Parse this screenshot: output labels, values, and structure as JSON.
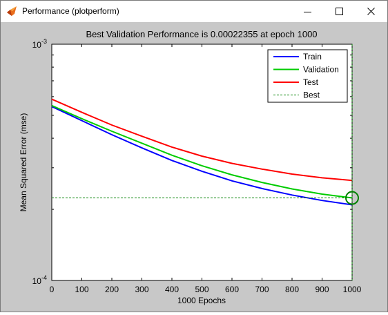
{
  "window": {
    "title": "Performance (plotperform)",
    "icon": "matlab-icon",
    "controls": [
      "minimize-icon",
      "maximize-icon",
      "close-icon"
    ]
  },
  "chart_data": {
    "type": "line",
    "title": "Best Validation Performance is 0.00022355 at epoch 1000",
    "xlabel": "1000 Epochs",
    "ylabel": "Mean Squared Error  (mse)",
    "xlim": [
      0,
      1000
    ],
    "ylim": [
      0.0001,
      0.001
    ],
    "yscale": "log",
    "x_ticks": [
      "0",
      "100",
      "200",
      "300",
      "400",
      "500",
      "600",
      "700",
      "800",
      "900",
      "1000"
    ],
    "y_ticks": [
      {
        "value": 0.001,
        "base": "10",
        "exp": "-3"
      },
      {
        "value": 0.0001,
        "base": "10",
        "exp": "-4"
      }
    ],
    "grid": false,
    "legend_position": "top-right",
    "x": [
      0,
      100,
      200,
      300,
      400,
      500,
      600,
      700,
      800,
      900,
      1000
    ],
    "series": [
      {
        "name": "Train",
        "color": "#0000ff",
        "values": [
          0.000545,
          0.000475,
          0.000414,
          0.000364,
          0.000322,
          0.00029,
          0.000264,
          0.000245,
          0.00023,
          0.000218,
          0.000209
        ]
      },
      {
        "name": "Validation",
        "color": "#00cc00",
        "values": [
          0.00055,
          0.000484,
          0.000428,
          0.000381,
          0.000339,
          0.000306,
          0.00028,
          0.00026,
          0.000244,
          0.000232,
          0.00022355
        ]
      },
      {
        "name": "Test",
        "color": "#ff0000",
        "values": [
          0.000585,
          0.000515,
          0.000455,
          0.000408,
          0.000367,
          0.000336,
          0.000313,
          0.000296,
          0.000282,
          0.000272,
          0.000265
        ]
      },
      {
        "name": "Best",
        "color": "#008000",
        "style": "dashed",
        "type": "marker-lines",
        "best_epoch": 1000,
        "best_value": 0.00022355
      }
    ]
  }
}
